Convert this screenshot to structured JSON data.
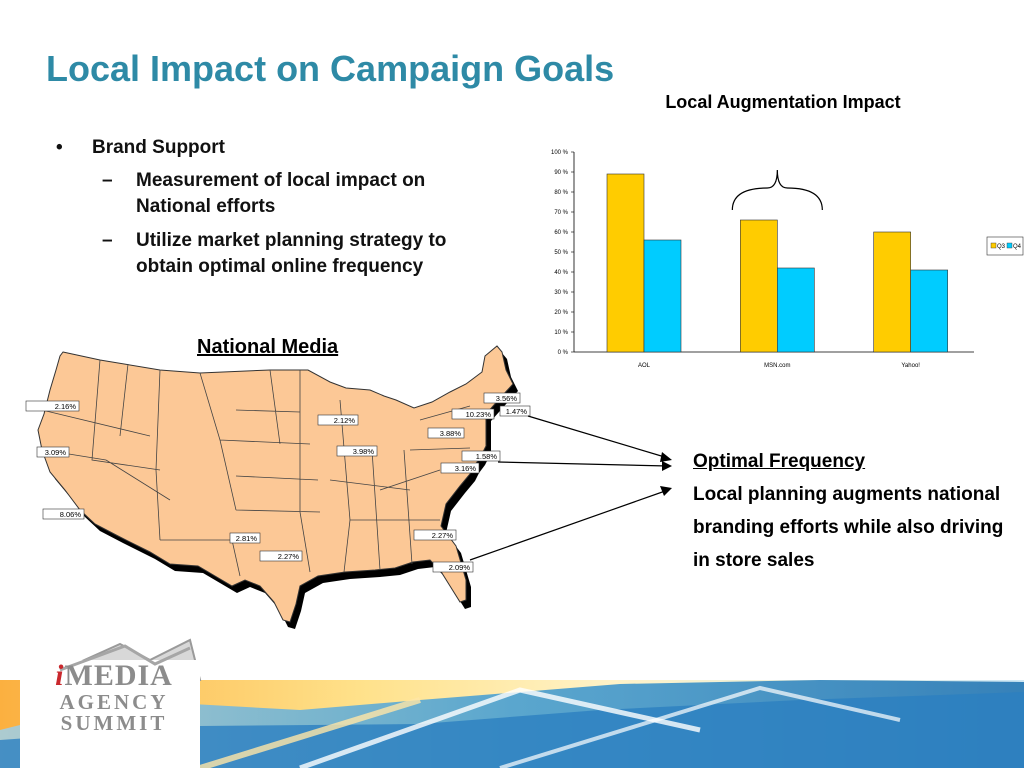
{
  "slide": {
    "title": "Local Impact on Campaign Goals",
    "bullets": {
      "marker": "•",
      "dash": "–",
      "main": "Brand Support",
      "sub": [
        "Measurement of local impact on National efforts",
        "Utilize market planning strategy to obtain optimal online frequency"
      ]
    },
    "map_title": "National Media",
    "optimal": {
      "heading": "Optimal Frequency",
      "body": "Local planning augments national branding efforts while also driving in store sales"
    }
  },
  "map_labels": [
    "2.16%",
    "3.09%",
    "8.06%",
    "2.81%",
    "2.27%",
    "2.12%",
    "3.98%",
    "3.56%",
    "1.47%",
    "10.23%",
    "3.88%",
    "1.58%",
    "3.16%",
    "2.27%",
    "2.09%"
  ],
  "chart_data": {
    "type": "bar",
    "title": "Local Augmentation Impact",
    "categories": [
      "AOL",
      "MSN.com",
      "Yahoo!"
    ],
    "series": [
      {
        "name": "Q3",
        "values": [
          89,
          66,
          60
        ],
        "color": "#ffcc00"
      },
      {
        "name": "Q4",
        "values": [
          56,
          42,
          41
        ],
        "color": "#00ccff"
      }
    ],
    "ylim": [
      0,
      100
    ],
    "yticks": [
      "0 %",
      "10 %",
      "20 %",
      "30 %",
      "40 %",
      "50 %",
      "60 %",
      "70 %",
      "80 %",
      "90 %",
      "100 %"
    ],
    "legend": "right",
    "annotation": "brace over MSN.com"
  },
  "colors": {
    "title": "#2e8aa6",
    "map_fill": "#fcc896",
    "q3": "#ffcc00",
    "q4": "#00ccff"
  },
  "brand": {
    "line1_i": "i",
    "line1": "MEDIA",
    "line2": "AGENCY",
    "line3": "SUMMIT"
  }
}
